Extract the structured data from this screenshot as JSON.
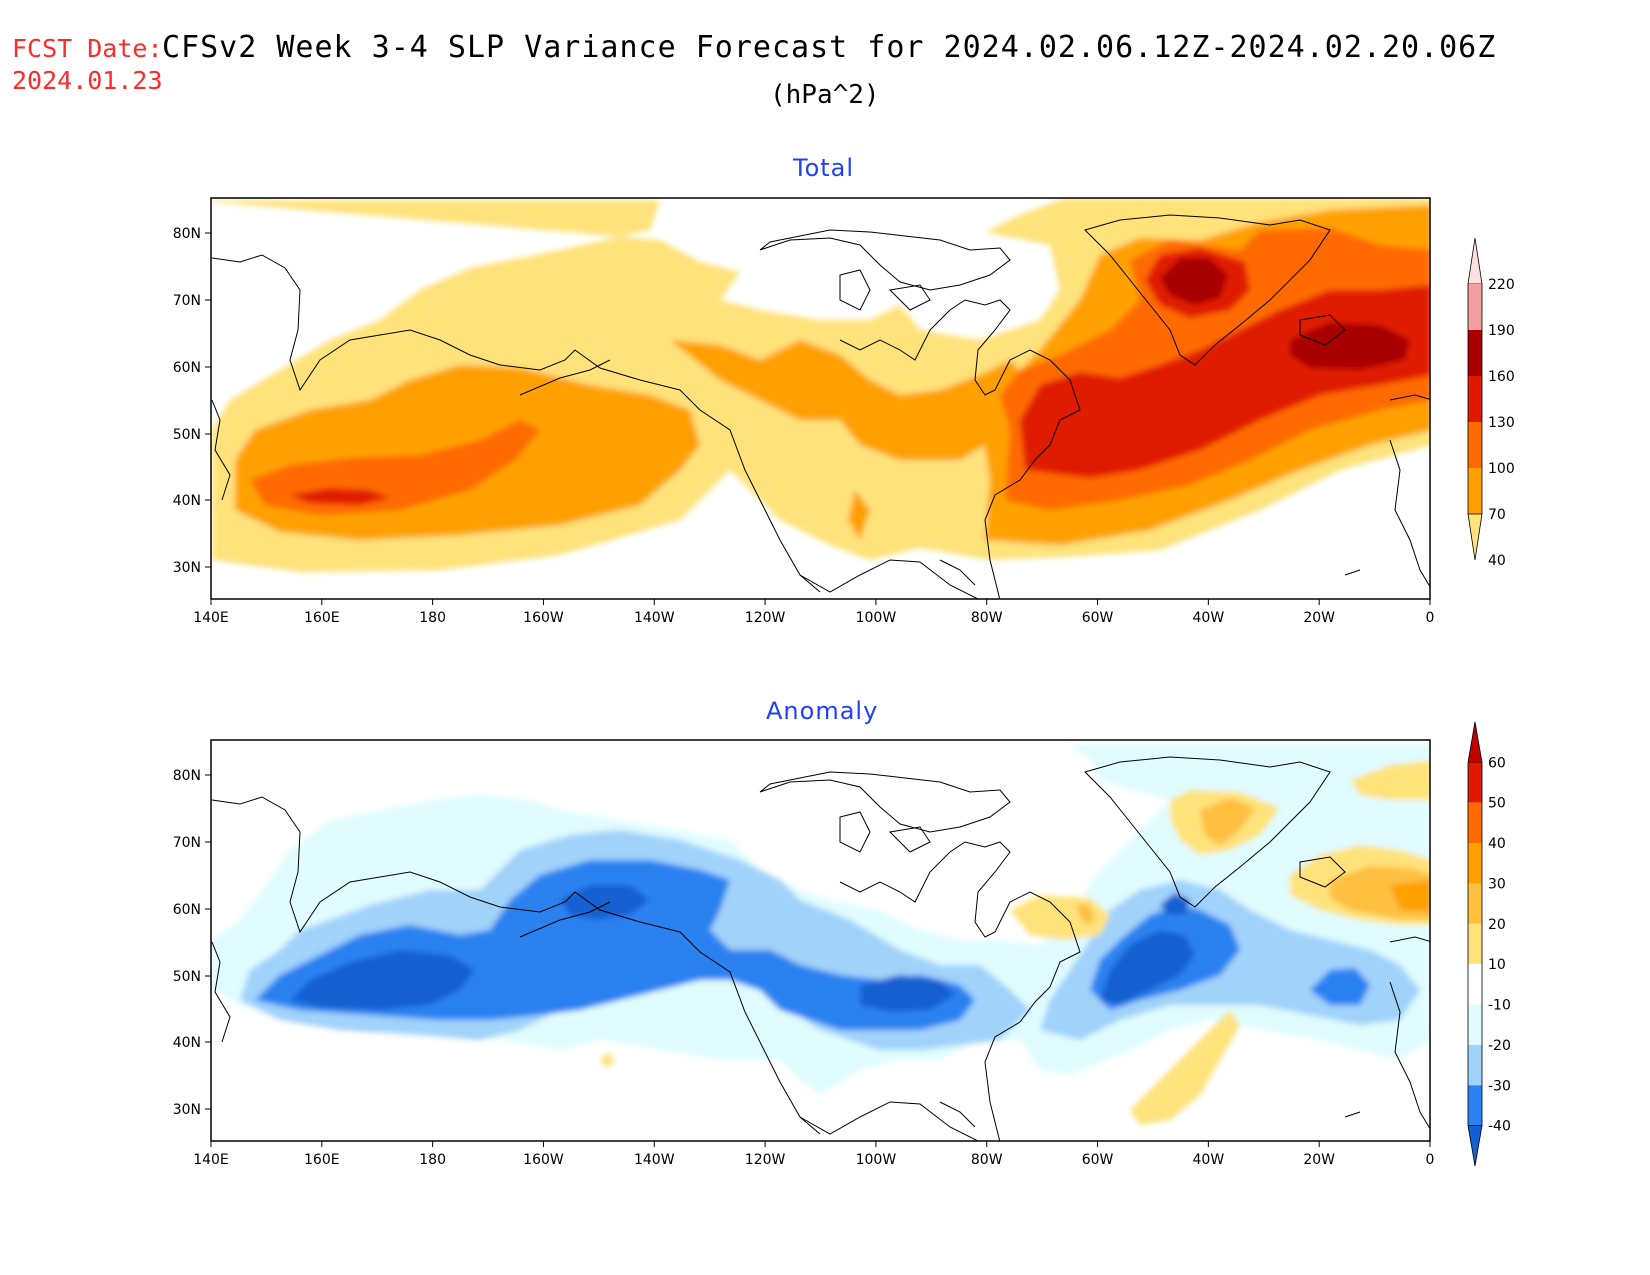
{
  "header": {
    "fcst_label": "FCST Date:",
    "fcst_date": "2024.01.23",
    "title": "CFSv2 Week 3-4 SLP Variance Forecast for 2024.02.06.12Z-2024.02.20.06Z",
    "units": "(hPa^2)"
  },
  "panels": [
    {
      "title": "Total",
      "lat_ticks": [
        "80N",
        "70N",
        "60N",
        "50N",
        "40N",
        "30N"
      ],
      "lon_ticks": [
        "140E",
        "160E",
        "180",
        "160W",
        "140W",
        "120W",
        "100W",
        "80W",
        "60W",
        "40W",
        "20W",
        "0"
      ],
      "colorbar": {
        "labels": [
          "220",
          "190",
          "160",
          "130",
          "100",
          "70",
          "40"
        ],
        "colors": [
          "#ffe0e0",
          "#f4a0a0",
          "#a80000",
          "#e01a00",
          "#ff6a00",
          "#ffa000",
          "#ffe27a"
        ]
      }
    },
    {
      "title": "Anomaly",
      "lat_ticks": [
        "80N",
        "70N",
        "60N",
        "50N",
        "40N",
        "30N"
      ],
      "lon_ticks": [
        "140E",
        "160E",
        "180",
        "160W",
        "140W",
        "120W",
        "100W",
        "80W",
        "60W",
        "40W",
        "20W",
        "0"
      ],
      "colorbar": {
        "labels": [
          "60",
          "50",
          "40",
          "30",
          "20",
          "10",
          "-10",
          "-20",
          "-30",
          "-40"
        ],
        "colors": [
          "#c00000",
          "#e01a00",
          "#ff6a00",
          "#ffa000",
          "#ffc040",
          "#ffe27a",
          "#ffffff",
          "#e0fcff",
          "#a0d2fa",
          "#2a82f0",
          "#1460d2"
        ]
      }
    }
  ]
}
